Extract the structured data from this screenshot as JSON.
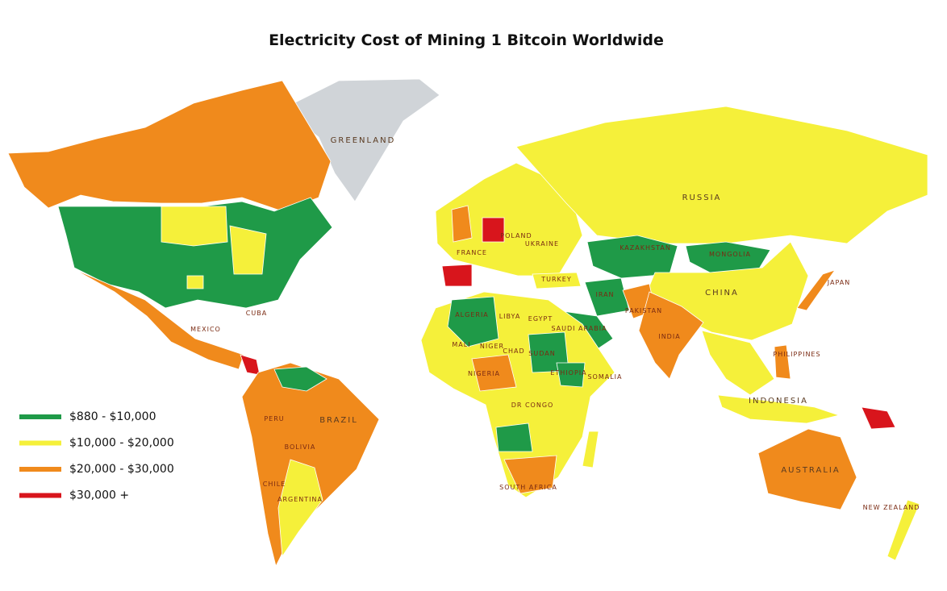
{
  "title": "Electricity Cost   of Mining 1 Bitcoin Worldwide",
  "legend": [
    {
      "label": "$880 - $10,000",
      "color": "#1f9a48"
    },
    {
      "label": "$10,000 - $20,000",
      "color": "#f5f03a"
    },
    {
      "label": "$20,000 - $30,000",
      "color": "#f08a1c"
    },
    {
      "label": "$30,000 +",
      "color": "#d8151c"
    }
  ],
  "country_labels": [
    "GREENLAND",
    "RUSSIA",
    "CHINA",
    "KAZAKHSTAN",
    "MONGOLIA",
    "INDIA",
    "IRAN",
    "TURKEY",
    "EGYPT",
    "LIBYA",
    "ALGERIA",
    "MALI",
    "NIGER",
    "CHAD",
    "SUDAN",
    "ETHIOPIA",
    "SOMALIA",
    "NIGERIA",
    "DR CONGO",
    "SOUTH AFRICA",
    "MEXICO",
    "BRAZIL",
    "PERU",
    "BOLIVIA",
    "CHILE",
    "ARGENTINA",
    "AUSTRALIA",
    "INDONESIA",
    "PHILIPPINES",
    "JAPAN",
    "NEW ZEALAND",
    "SAUDI ARABIA",
    "PAKISTAN",
    "FRANCE",
    "POLAND",
    "UKRAINE",
    "CUBA"
  ]
}
